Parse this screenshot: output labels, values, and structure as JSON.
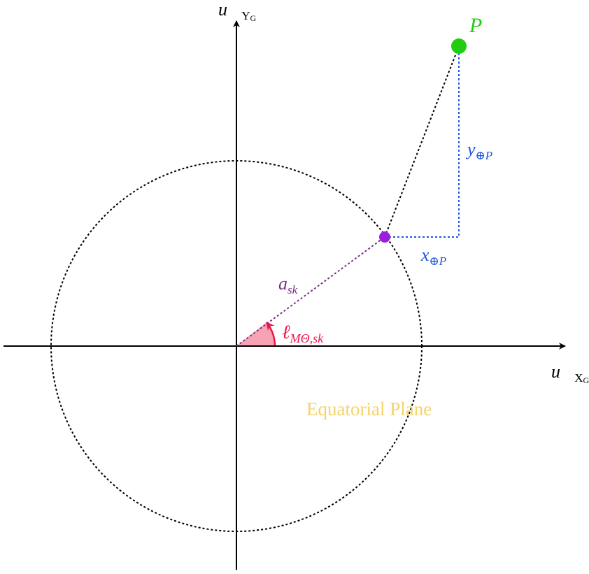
{
  "labels": {
    "y_axis": {
      "base": "u⃗",
      "sub": "Y",
      "subsub": "G"
    },
    "x_axis": {
      "base": "u⃗",
      "sub": "X",
      "subsub": "G"
    },
    "point": "P",
    "y_component": {
      "base": "y",
      "sub": "⊕P"
    },
    "x_component": {
      "base": "x",
      "sub": "⊕P"
    },
    "radius": {
      "base": "a",
      "sub": "sk"
    },
    "angle": {
      "base": "ℓ",
      "sub": "MΘ,sk"
    },
    "plane": "Equatorial Plane"
  }
}
